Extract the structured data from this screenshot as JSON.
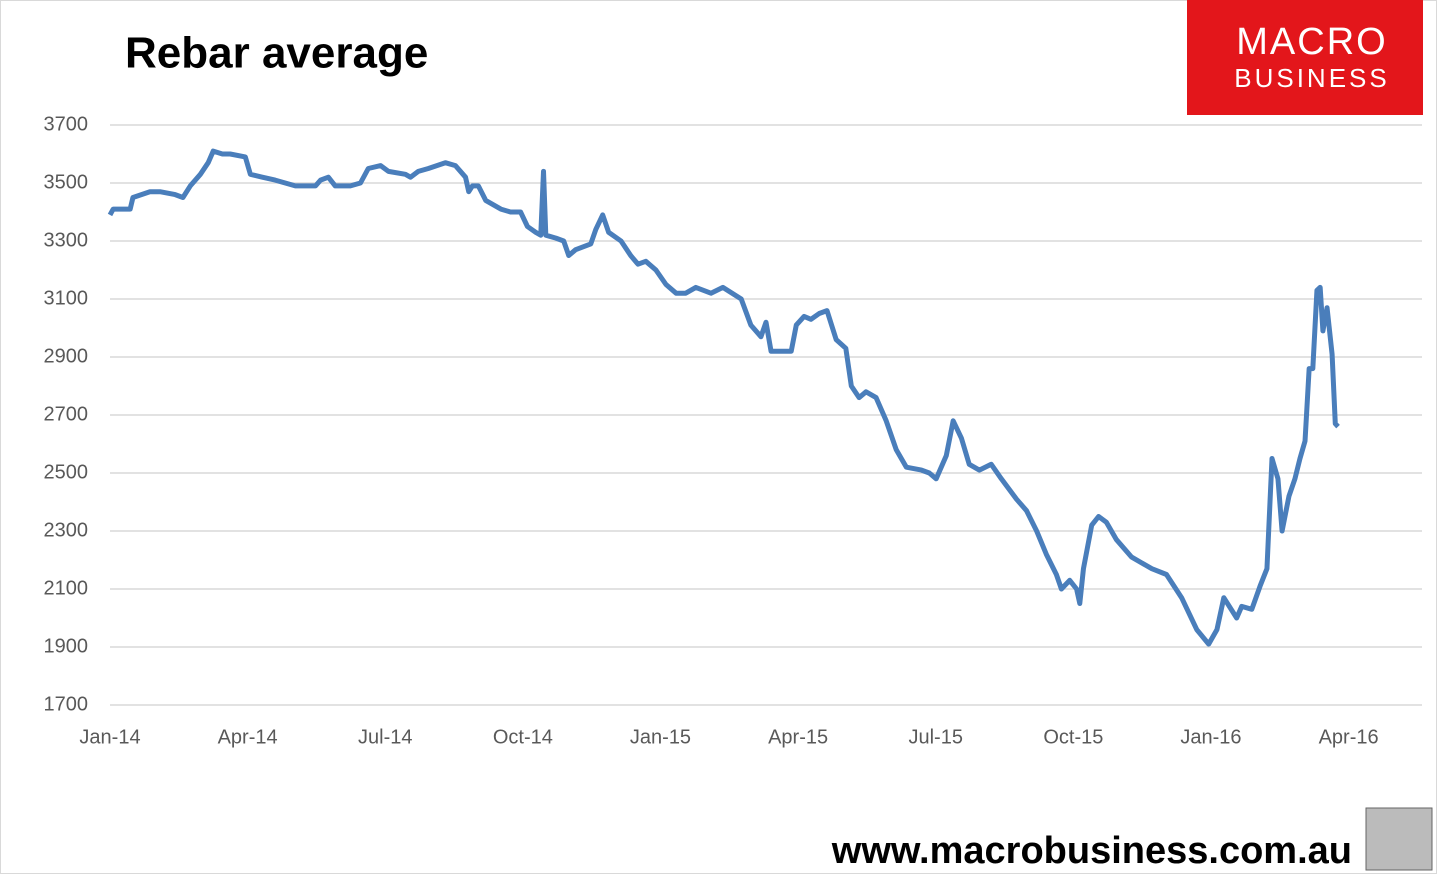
{
  "chart_data": {
    "type": "line",
    "title": "Rebar average",
    "logo": [
      "MACRO",
      "BUSINESS"
    ],
    "source": "www.macrobusiness.com.au",
    "xlim": [
      0,
      28.6
    ],
    "xticks": [
      {
        "value": 0,
        "label": "Jan-14"
      },
      {
        "value": 3,
        "label": "Apr-14"
      },
      {
        "value": 6,
        "label": "Jul-14"
      },
      {
        "value": 9,
        "label": "Oct-14"
      },
      {
        "value": 12,
        "label": "Jan-15"
      },
      {
        "value": 15,
        "label": "Apr-15"
      },
      {
        "value": 18,
        "label": "Jul-15"
      },
      {
        "value": 21,
        "label": "Oct-15"
      },
      {
        "value": 24,
        "label": "Jan-16"
      },
      {
        "value": 27,
        "label": "Apr-16"
      }
    ],
    "ylim": [
      1700,
      3700
    ],
    "yticks": [
      1700,
      1900,
      2100,
      2300,
      2500,
      2700,
      2900,
      3100,
      3300,
      3500,
      3700
    ],
    "grid": true,
    "x": [
      0,
      0.07,
      0.44,
      0.5,
      0.87,
      1.09,
      1.42,
      1.59,
      1.75,
      1.97,
      2.14,
      2.25,
      2.45,
      2.62,
      2.95,
      3.06,
      3.32,
      3.6,
      4.04,
      4.48,
      4.59,
      4.76,
      4.91,
      5.24,
      5.46,
      5.63,
      5.9,
      6.07,
      6.44,
      6.55,
      6.72,
      6.94,
      7.31,
      7.53,
      7.75,
      7.82,
      7.9,
      8.03,
      8.19,
      8.52,
      8.73,
      8.95,
      9.1,
      9.28,
      9.39,
      9.45,
      9.5,
      9.72,
      9.89,
      10.0,
      10.15,
      10.48,
      10.59,
      10.74,
      10.87,
      11.14,
      11.35,
      11.51,
      11.68,
      11.9,
      12.12,
      12.34,
      12.55,
      12.77,
      13.1,
      13.36,
      13.76,
      13.97,
      14.19,
      14.3,
      14.41,
      14.63,
      14.85,
      14.96,
      15.13,
      15.28,
      15.46,
      15.63,
      15.83,
      16.04,
      16.16,
      16.33,
      16.48,
      16.7,
      16.92,
      17.14,
      17.36,
      17.69,
      17.86,
      18.01,
      18.23,
      18.38,
      18.56,
      18.73,
      18.95,
      19.21,
      19.43,
      19.76,
      19.98,
      20.2,
      20.41,
      20.63,
      20.74,
      20.92,
      21.07,
      21.14,
      21.22,
      21.4,
      21.55,
      21.72,
      21.94,
      22.27,
      22.71,
      23.03,
      23.36,
      23.69,
      23.95,
      24.13,
      24.28,
      24.56,
      24.67,
      24.89,
      25.07,
      25.22,
      25.33,
      25.46,
      25.55,
      25.7,
      25.83,
      25.94,
      26.05,
      26.14,
      26.22,
      26.31,
      26.38,
      26.44,
      26.53,
      26.64,
      26.71,
      26.77
    ],
    "series": [
      {
        "name": "Rebar average",
        "color": "#4a7ebb",
        "values": [
          3390,
          3410,
          3410,
          3450,
          3470,
          3470,
          3460,
          3450,
          3490,
          3530,
          3570,
          3610,
          3600,
          3600,
          3590,
          3530,
          3520,
          3510,
          3490,
          3490,
          3510,
          3520,
          3490,
          3490,
          3500,
          3550,
          3560,
          3540,
          3530,
          3520,
          3540,
          3550,
          3570,
          3560,
          3520,
          3470,
          3490,
          3490,
          3440,
          3410,
          3400,
          3400,
          3350,
          3330,
          3320,
          3540,
          3320,
          3310,
          3300,
          3250,
          3270,
          3290,
          3340,
          3390,
          3330,
          3300,
          3250,
          3220,
          3230,
          3200,
          3150,
          3120,
          3120,
          3140,
          3120,
          3140,
          3100,
          3010,
          2970,
          3020,
          2920,
          2920,
          2920,
          3010,
          3040,
          3030,
          3050,
          3060,
          2960,
          2930,
          2800,
          2760,
          2780,
          2760,
          2680,
          2580,
          2520,
          2510,
          2500,
          2480,
          2560,
          2680,
          2620,
          2530,
          2510,
          2530,
          2480,
          2410,
          2370,
          2300,
          2220,
          2150,
          2100,
          2130,
          2100,
          2050,
          2170,
          2320,
          2350,
          2330,
          2270,
          2210,
          2170,
          2150,
          2070,
          1960,
          1910,
          1960,
          2070,
          2000,
          2040,
          2030,
          2110,
          2170,
          2550,
          2480,
          2300,
          2420,
          2480,
          2550,
          2610,
          2860,
          2860,
          3130,
          3140,
          2990,
          3070,
          2910,
          2670,
          2660
        ]
      }
    ]
  }
}
